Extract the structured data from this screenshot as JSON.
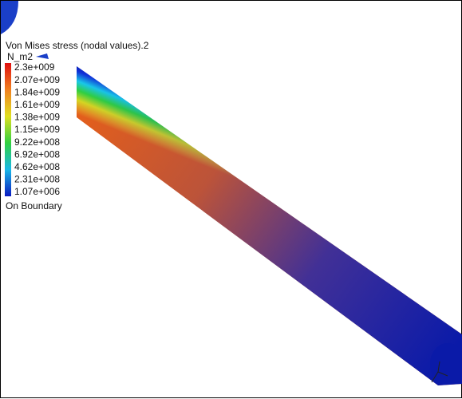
{
  "legend": {
    "title": "Von Mises stress (nodal values).2",
    "unit": "N_m2",
    "labels": [
      "2.3e+009",
      "2.07e+009",
      "1.84e+009",
      "1.61e+009",
      "1.38e+009",
      "1.15e+009",
      "9.22e+008",
      "6.92e+008",
      "4.62e+008",
      "2.31e+008",
      "1.07e+006"
    ],
    "note": "On Boundary"
  }
}
